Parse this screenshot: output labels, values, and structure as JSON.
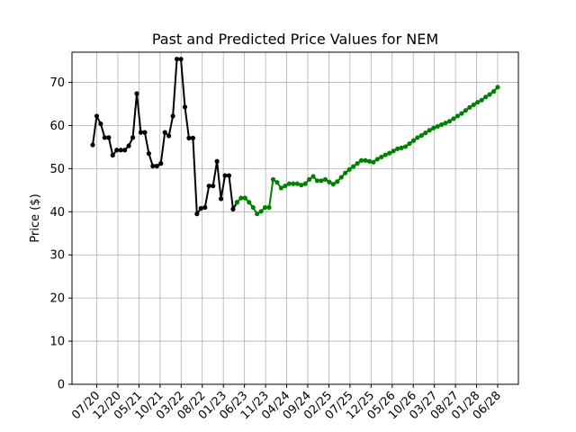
{
  "chart_data": {
    "type": "line",
    "title": "Past and Predicted Price Values for NEM",
    "xlabel": "",
    "ylabel": "Price ($)",
    "ylim": [
      0,
      77
    ],
    "yticks": [
      0,
      10,
      20,
      30,
      40,
      50,
      60,
      70
    ],
    "grid": true,
    "legend": "none",
    "x_tick_labels": [
      "07/20",
      "12/20",
      "05/21",
      "10/21",
      "03/22",
      "08/22",
      "01/23",
      "06/23",
      "11/23",
      "04/24",
      "09/24",
      "02/25",
      "07/25",
      "12/25",
      "05/26",
      "10/26",
      "03/27",
      "08/27",
      "01/28",
      "06/28"
    ],
    "series": [
      {
        "name": "",
        "color": "#000000",
        "values": [
          55.5,
          62.2,
          60.4,
          57.2,
          57.2,
          53.1,
          54.3,
          54.3,
          54.3,
          55.3,
          57.2,
          67.4,
          58.4,
          58.4,
          53.5,
          50.6,
          50.6,
          51.2,
          58.4,
          57.6,
          62.2,
          75.4,
          75.4,
          64.3,
          57.1,
          57.1,
          39.5,
          40.8,
          41.0,
          46.0,
          46.0,
          51.7,
          43.0,
          48.4,
          48.4,
          40.6,
          42.2
        ]
      },
      {
        "name": "",
        "color": "#008000",
        "values": [
          42.2,
          43.2,
          43.2,
          42.2,
          41.0,
          39.5,
          40.1,
          41.0,
          41.0,
          47.5,
          46.8,
          45.5,
          46.0,
          46.5,
          46.5,
          46.5,
          46.2,
          46.5,
          47.5,
          48.2,
          47.2,
          47.2,
          47.5,
          46.9,
          46.4,
          47.0,
          48.0,
          49.0,
          49.8,
          50.5,
          51.2,
          51.9,
          51.9,
          51.7,
          51.5,
          52.2,
          52.7,
          53.2,
          53.6,
          54.1,
          54.6,
          54.8,
          55.1,
          55.8,
          56.5,
          57.2,
          57.7,
          58.3,
          58.9,
          59.4,
          59.8,
          60.2,
          60.6,
          61.0,
          61.6,
          62.2,
          62.8,
          63.5,
          64.2,
          64.8,
          65.4,
          65.9,
          66.6,
          67.2,
          67.9,
          68.9
        ]
      }
    ]
  }
}
